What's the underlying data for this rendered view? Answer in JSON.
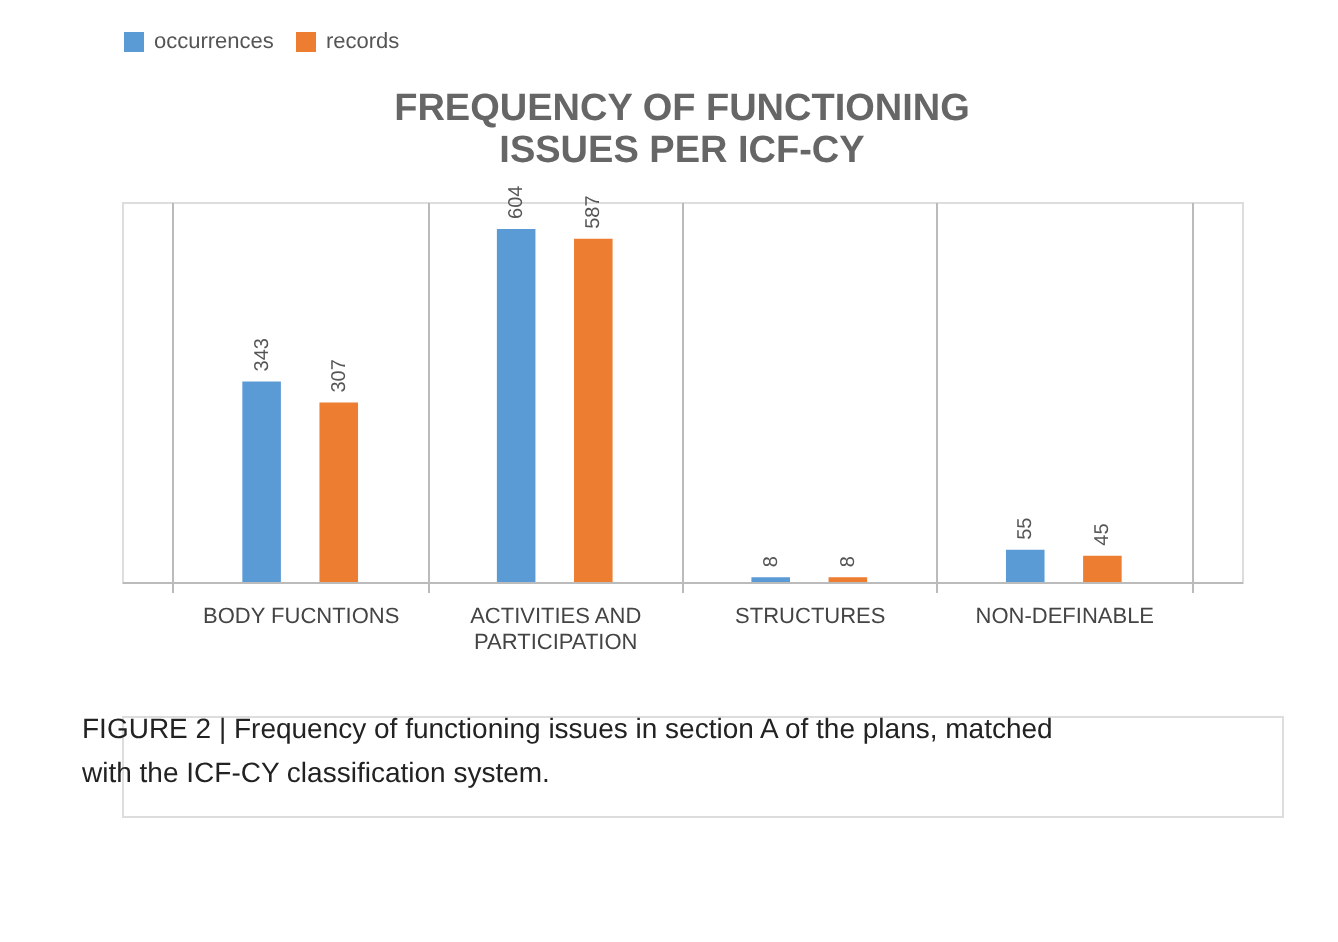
{
  "chart_data": {
    "type": "bar",
    "title": "FREQUENCY OF FUNCTIONING ISSUES PER ICF-CY",
    "categories": [
      "BODY FUCNTIONS",
      "ACTIVITIES AND PARTICIPATION",
      "STRUCTURES",
      "NON-DEFINABLE"
    ],
    "series": [
      {
        "name": "occurrences",
        "color": "#5b9bd5",
        "values": [
          343,
          604,
          8,
          55
        ]
      },
      {
        "name": "records",
        "color": "#ed7d31",
        "values": [
          307,
          587,
          8,
          45
        ]
      }
    ],
    "data_labels": true,
    "legend": "top",
    "grid": "x",
    "tick_labels": "x",
    "annotations": [
      "FIGURE 2 | Frequency of functioning issues in section A of the plans, matched with the ICF-CY classification system."
    ]
  }
}
